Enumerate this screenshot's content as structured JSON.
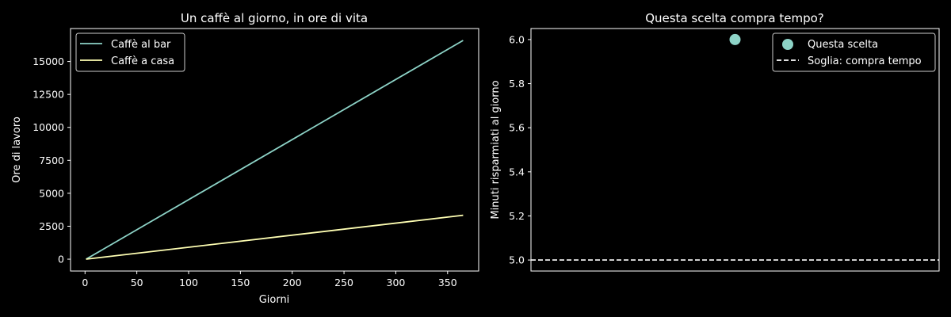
{
  "chart_data": [
    {
      "type": "line",
      "title": "Un caffè al giorno, in ore di vita",
      "xlabel": "Giorni",
      "ylabel": "Ore di lavoro",
      "xlim": [
        -14,
        380
      ],
      "ylim": [
        -900,
        17500
      ],
      "xticks": [
        0,
        50,
        100,
        150,
        200,
        250,
        300,
        350
      ],
      "yticks": [
        0,
        2500,
        5000,
        7500,
        10000,
        12500,
        15000
      ],
      "legend_position": "top-left",
      "series": [
        {
          "name": "Caffè al bar",
          "color": "#8dd3c7",
          "x": [
            1,
            365
          ],
          "y": [
            0,
            16600
          ]
        },
        {
          "name": "Caffè a casa",
          "color": "#ffffb3",
          "x": [
            1,
            365
          ],
          "y": [
            0,
            3330
          ]
        }
      ]
    },
    {
      "type": "scatter",
      "title": "Questa scelta compra tempo?",
      "xlabel": "",
      "ylabel": "Minuti risparmiati al giorno",
      "ylim": [
        4.95,
        6.05
      ],
      "yticks": [
        5.0,
        5.2,
        5.4,
        5.6,
        5.8,
        6.0
      ],
      "legend_position": "top-right",
      "points": [
        {
          "label": "Questa scelta",
          "y": 6.0,
          "color": "#8dd3c7"
        }
      ],
      "threshold": {
        "label": "Soglia: compra tempo",
        "y": 5.0,
        "color": "#ffffff"
      }
    }
  ]
}
